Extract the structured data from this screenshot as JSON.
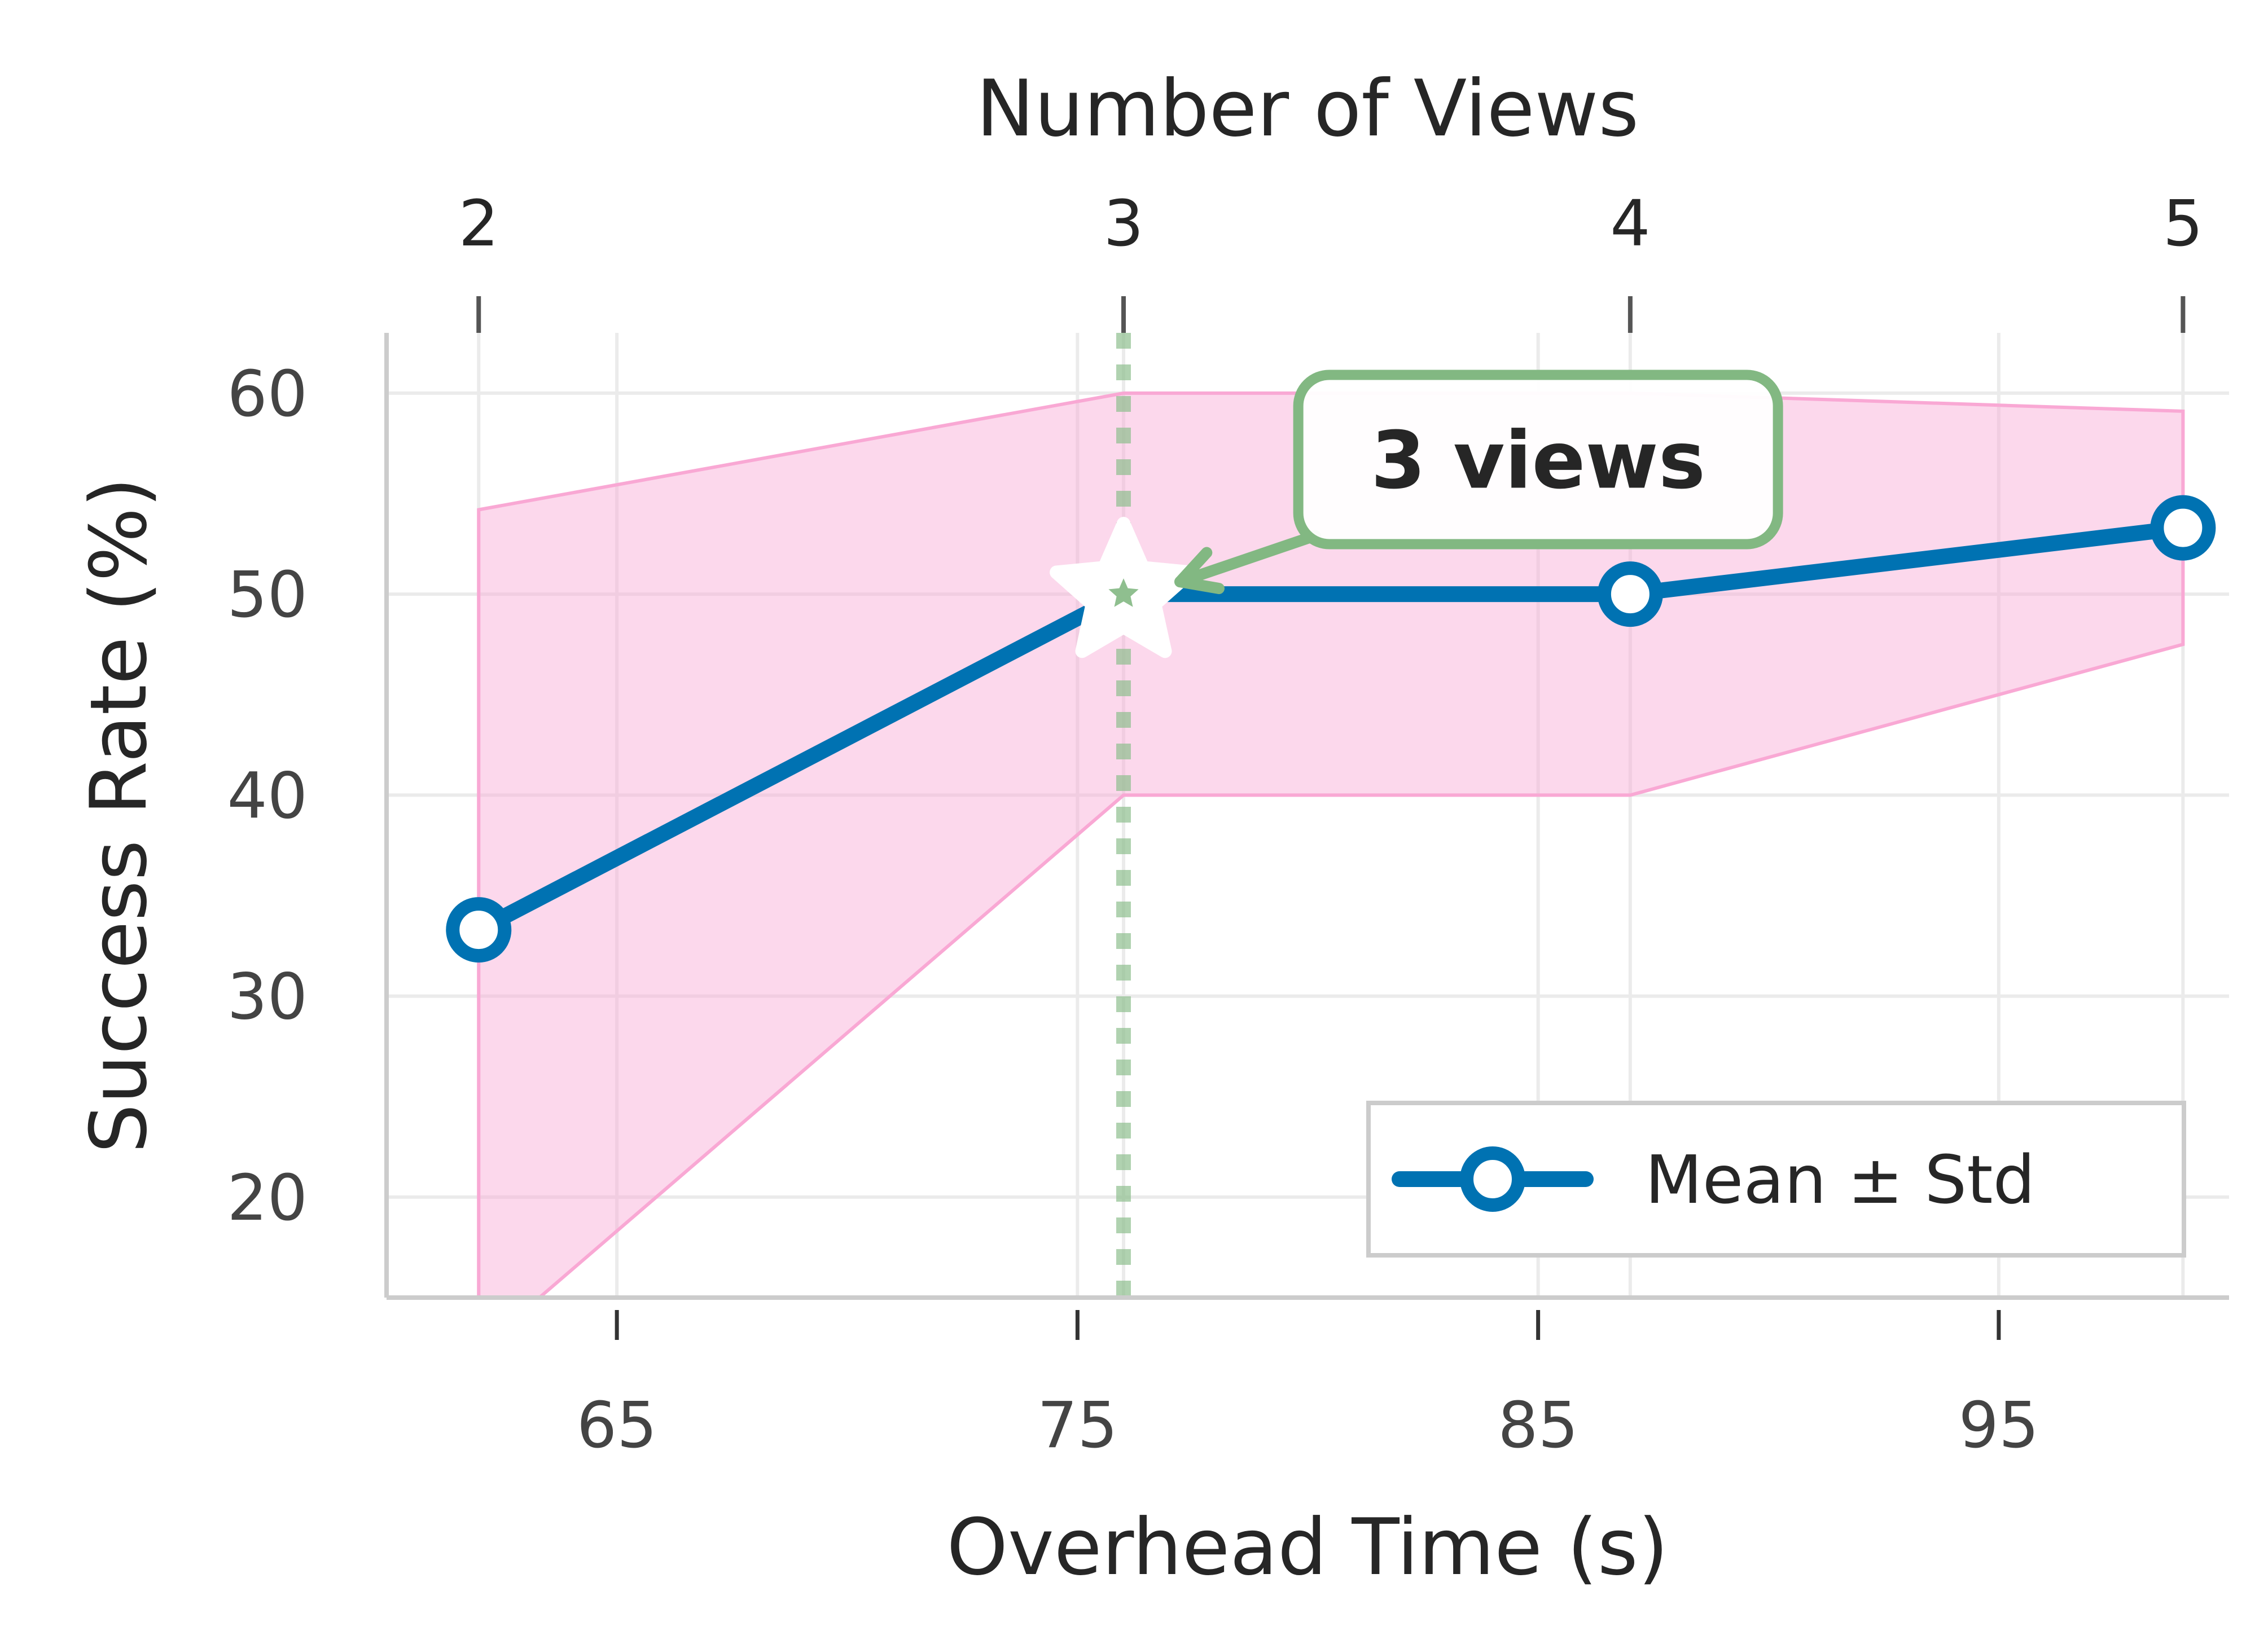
{
  "chart_data": {
    "type": "line",
    "xlabel": "Overhead Time (s)",
    "ylabel": "Success Rate (%)",
    "top_xlabel": "Number of Views",
    "xlim": [
      60,
      100
    ],
    "ylim": [
      15,
      63
    ],
    "x_ticks": [
      65,
      75,
      85,
      95
    ],
    "y_ticks": [
      20,
      30,
      40,
      50,
      60
    ],
    "top_ticks": [
      {
        "x": 62,
        "label": "2"
      },
      {
        "x": 76,
        "label": "3"
      },
      {
        "x": 87,
        "label": "4"
      },
      {
        "x": 99,
        "label": "5"
      }
    ],
    "grid": true,
    "series": [
      {
        "name": "Mean ± Std",
        "color": "#0072b2",
        "points": [
          {
            "x": 62,
            "y": 33.3
          },
          {
            "x": 76,
            "y": 50
          },
          {
            "x": 87,
            "y": 50
          },
          {
            "x": 99,
            "y": 53.3
          }
        ],
        "band_upper": [
          54.2,
          60,
          60,
          59.1
        ],
        "band_lower": [
          12.4,
          40,
          40,
          47.5
        ],
        "band_color": "#f9a8d4"
      }
    ],
    "highlight": {
      "x": 76,
      "y": 50,
      "marker": "star",
      "vline_color": "#8fbf8f",
      "annotation": "3 views",
      "annotation_color": "#82b882",
      "annotation_text_x": 85,
      "annotation_text_y": 56.7
    },
    "legend": {
      "position": "lower-right",
      "entries": [
        "Mean ± Std"
      ]
    }
  }
}
